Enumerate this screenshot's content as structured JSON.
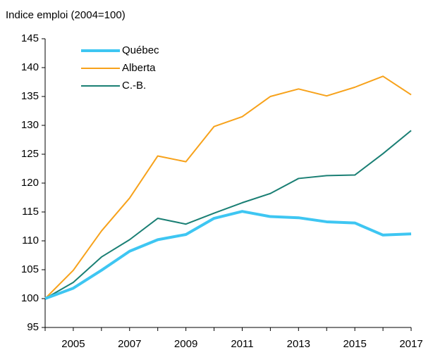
{
  "chart_data": {
    "type": "line",
    "title": "Indice emploi (2004=100)",
    "categories": [
      null,
      "2005",
      null,
      "2007",
      null,
      "2009",
      null,
      "2011",
      null,
      "2013",
      null,
      "2015",
      null,
      "2017"
    ],
    "series": [
      {
        "name": "Québec",
        "color": "#3ec6f2",
        "values": [
          100,
          101.8,
          104.9,
          108.2,
          110.2,
          111.1,
          113.9,
          115.1,
          114.2,
          114.0,
          113.3,
          113.1,
          111.0,
          111.2
        ]
      },
      {
        "name": "Alberta",
        "color": "#f7a21b",
        "values": [
          100,
          104.9,
          111.7,
          117.4,
          124.7,
          123.7,
          129.8,
          131.5,
          135.0,
          136.3,
          135.1,
          136.6,
          138.5,
          135.3
        ]
      },
      {
        "name": "C.-B.",
        "color": "#1a7f74",
        "values": [
          100,
          102.8,
          107.2,
          110.2,
          113.9,
          112.9,
          114.8,
          116.6,
          118.2,
          120.8,
          121.3,
          121.4,
          125.1,
          129.1
        ]
      }
    ],
    "ylim": [
      95,
      145
    ],
    "yticks": [
      95,
      100,
      105,
      110,
      115,
      120,
      125,
      130,
      135,
      140,
      145
    ],
    "legend": "upper left",
    "grid": false
  }
}
